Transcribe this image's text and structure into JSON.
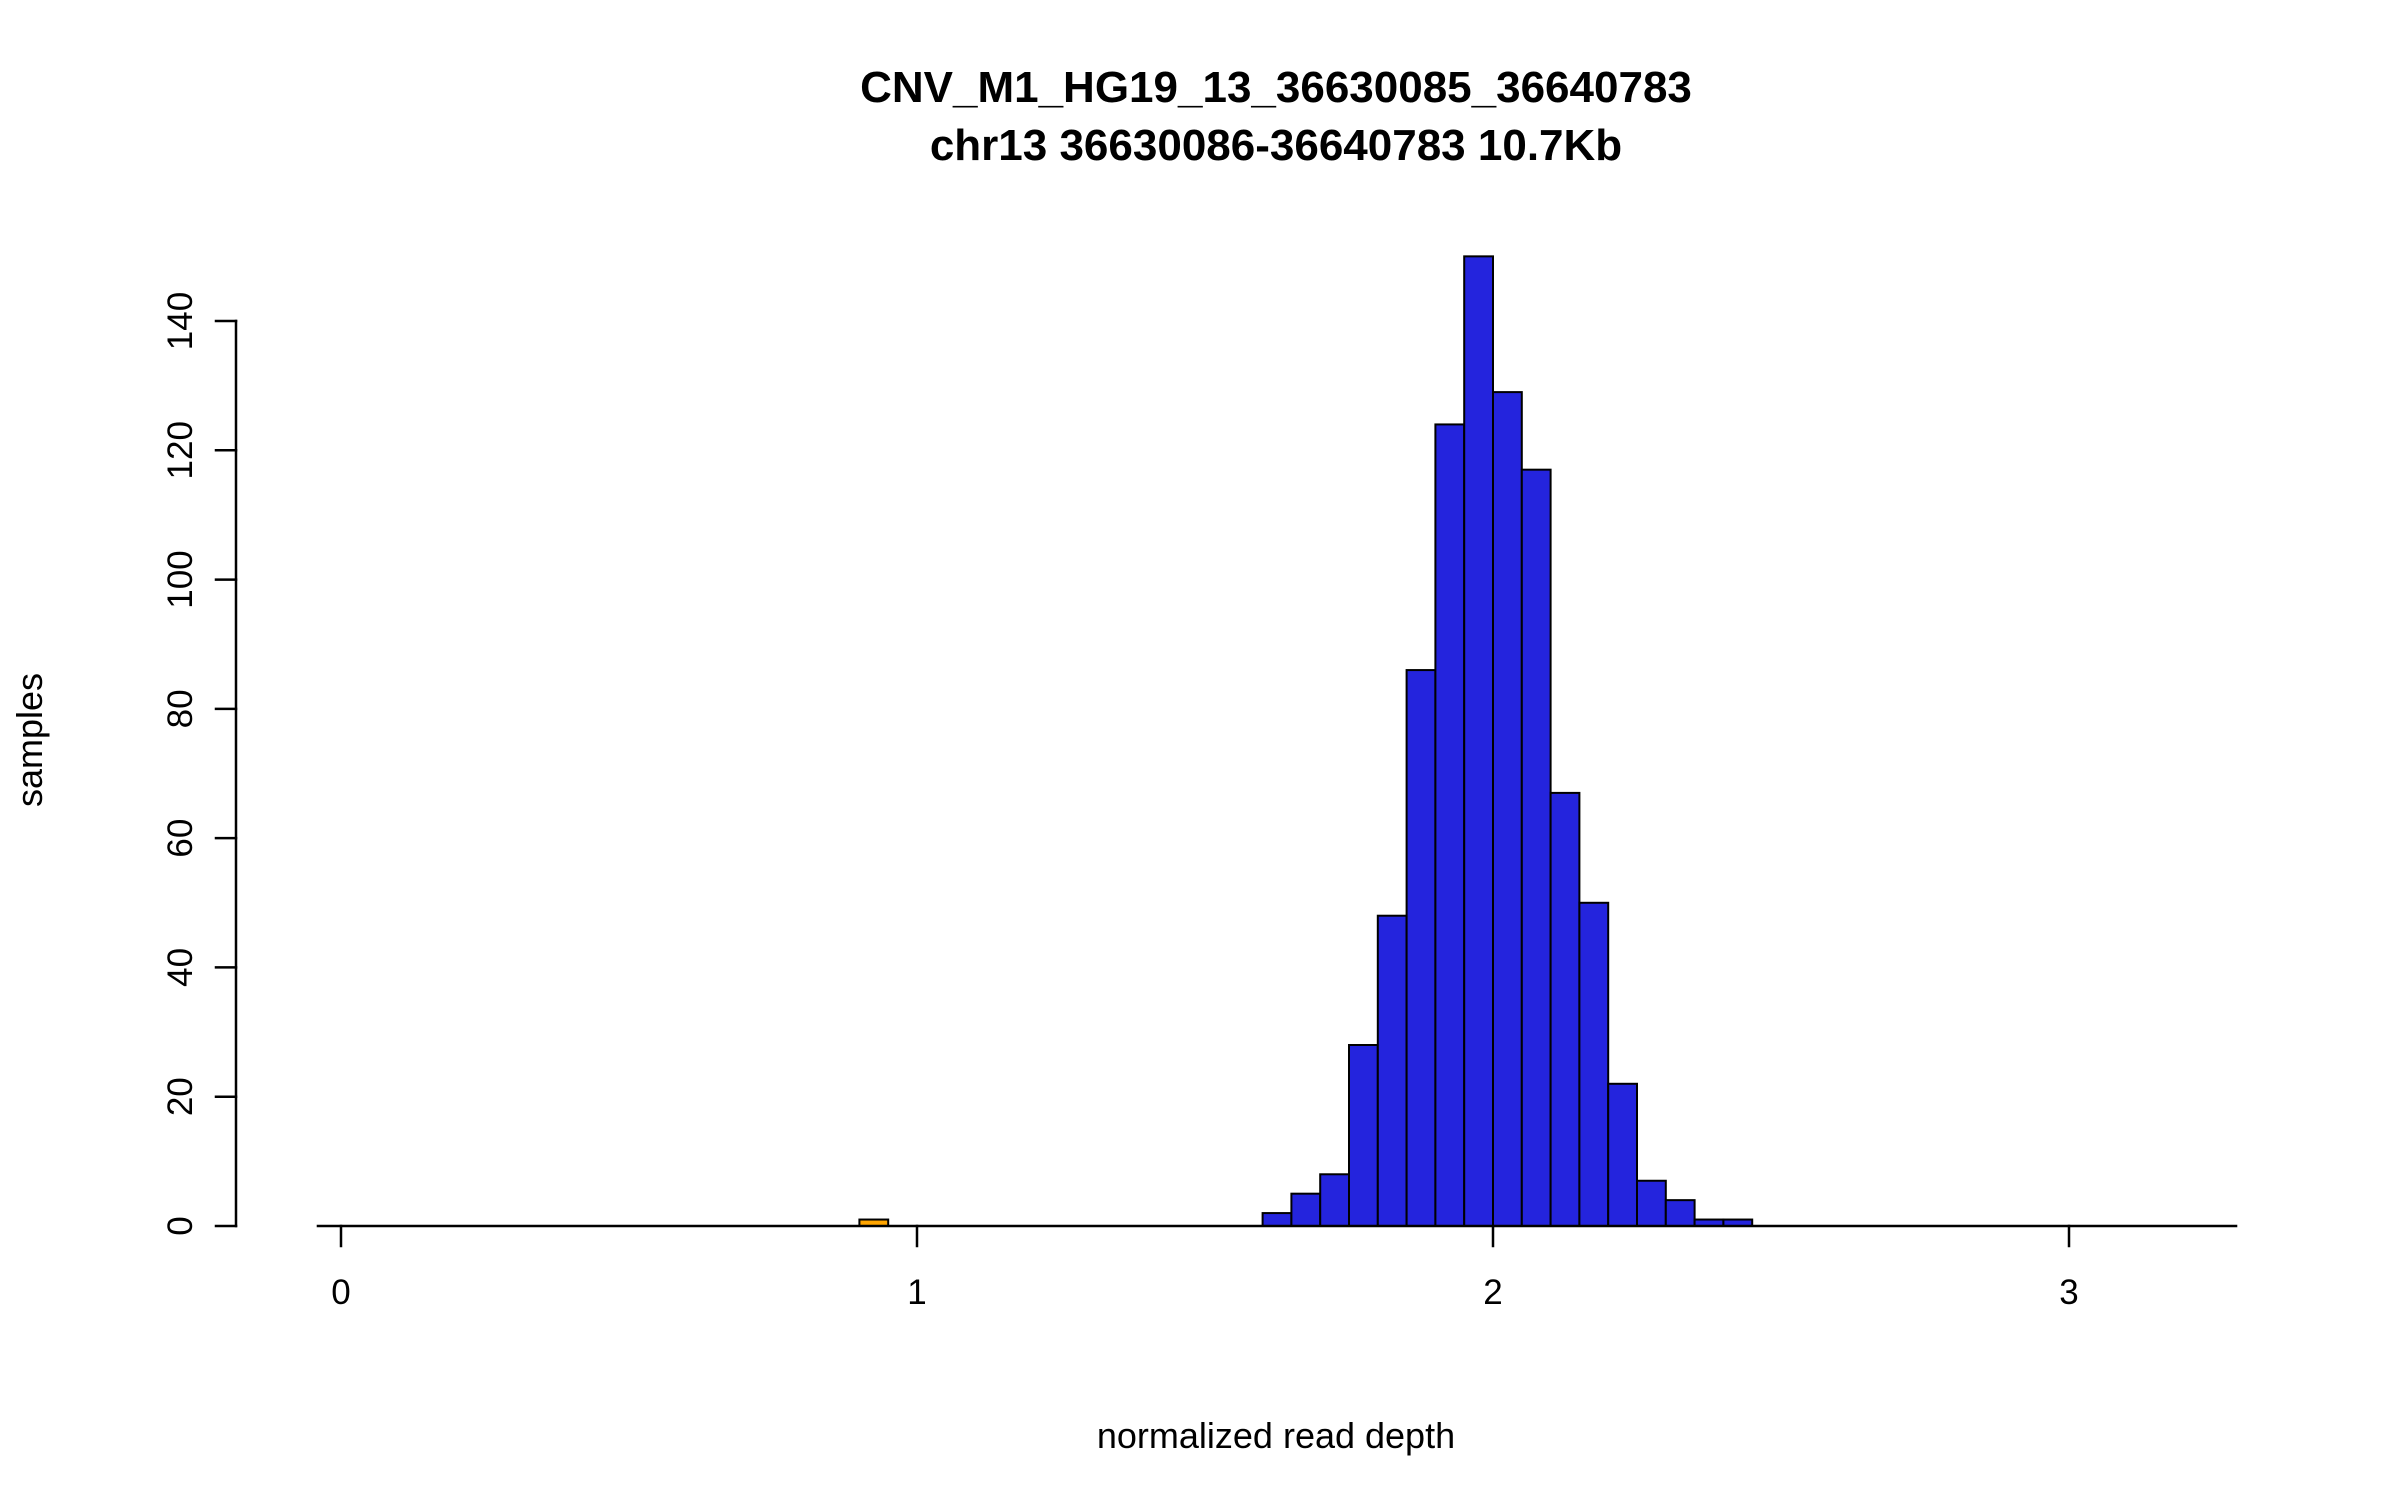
{
  "chart_data": {
    "type": "bar",
    "subtype": "histogram",
    "title": "CNV_M1_HG19_13_36630085_36640783",
    "subtitle": "chr13 36630086-36640783 10.7Kb",
    "xlabel": "normalized read depth",
    "ylabel": "samples",
    "x_ticks": [
      0,
      1,
      2,
      3
    ],
    "y_ticks": [
      0,
      20,
      40,
      60,
      80,
      100,
      120,
      140
    ],
    "xlim": [
      -0.04,
      3.29
    ],
    "ylim": [
      0,
      150
    ],
    "bin_width": 0.05,
    "grid": "off",
    "legend": "none",
    "colors": {
      "main_bar_fill": "#2424dd",
      "outlier_bar_fill": "#ffa500",
      "bar_stroke": "#000000",
      "axis": "#000000",
      "background": "#ffffff"
    },
    "bars": [
      {
        "bin_start": 0.9,
        "count": 1,
        "color": "#ffa500"
      },
      {
        "bin_start": 1.6,
        "count": 2,
        "color": "#2424dd"
      },
      {
        "bin_start": 1.65,
        "count": 5,
        "color": "#2424dd"
      },
      {
        "bin_start": 1.7,
        "count": 8,
        "color": "#2424dd"
      },
      {
        "bin_start": 1.75,
        "count": 28,
        "color": "#2424dd"
      },
      {
        "bin_start": 1.8,
        "count": 48,
        "color": "#2424dd"
      },
      {
        "bin_start": 1.85,
        "count": 86,
        "color": "#2424dd"
      },
      {
        "bin_start": 1.9,
        "count": 124,
        "color": "#2424dd"
      },
      {
        "bin_start": 1.95,
        "count": 150,
        "color": "#2424dd"
      },
      {
        "bin_start": 2.0,
        "count": 129,
        "color": "#2424dd"
      },
      {
        "bin_start": 2.05,
        "count": 117,
        "color": "#2424dd"
      },
      {
        "bin_start": 2.1,
        "count": 67,
        "color": "#2424dd"
      },
      {
        "bin_start": 2.15,
        "count": 50,
        "color": "#2424dd"
      },
      {
        "bin_start": 2.2,
        "count": 22,
        "color": "#2424dd"
      },
      {
        "bin_start": 2.25,
        "count": 7,
        "color": "#2424dd"
      },
      {
        "bin_start": 2.3,
        "count": 4,
        "color": "#2424dd"
      },
      {
        "bin_start": 2.35,
        "count": 1,
        "color": "#2424dd"
      },
      {
        "bin_start": 2.4,
        "count": 1,
        "color": "#2424dd"
      }
    ]
  }
}
